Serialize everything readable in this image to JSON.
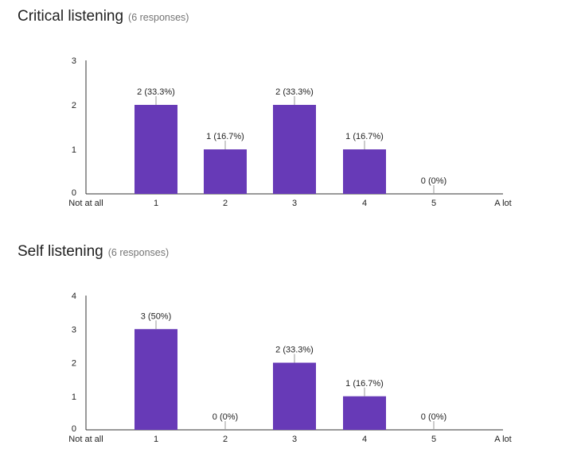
{
  "sections": [
    {
      "title": "Critical listening",
      "count_label": "(6 responses)"
    },
    {
      "title": "Self listening",
      "count_label": "(6 responses)"
    }
  ],
  "chart_data": [
    {
      "type": "bar",
      "title": "Critical listening",
      "categories": [
        "1",
        "2",
        "3",
        "4",
        "5"
      ],
      "values": [
        2,
        1,
        2,
        1,
        0
      ],
      "data_labels": [
        "2 (33.3%)",
        "1 (16.7%)",
        "2 (33.3%)",
        "1 (16.7%)",
        "0 (0%)"
      ],
      "x_endpoints": [
        "Not at all",
        "A lot"
      ],
      "y_ticks": [
        "0",
        "1",
        "2",
        "3"
      ],
      "ylim": [
        0,
        3
      ],
      "bar_color": "#673ab7",
      "grid": false
    },
    {
      "type": "bar",
      "title": "Self listening",
      "categories": [
        "1",
        "2",
        "3",
        "4",
        "5"
      ],
      "values": [
        3,
        0,
        2,
        1,
        0
      ],
      "data_labels": [
        "3 (50%)",
        "0 (0%)",
        "2 (33.3%)",
        "1 (16.7%)",
        "0 (0%)"
      ],
      "x_endpoints": [
        "Not at all",
        "A lot"
      ],
      "y_ticks": [
        "0",
        "1",
        "2",
        "3",
        "4"
      ],
      "ylim": [
        0,
        4
      ],
      "bar_color": "#673ab7",
      "grid": false
    }
  ]
}
